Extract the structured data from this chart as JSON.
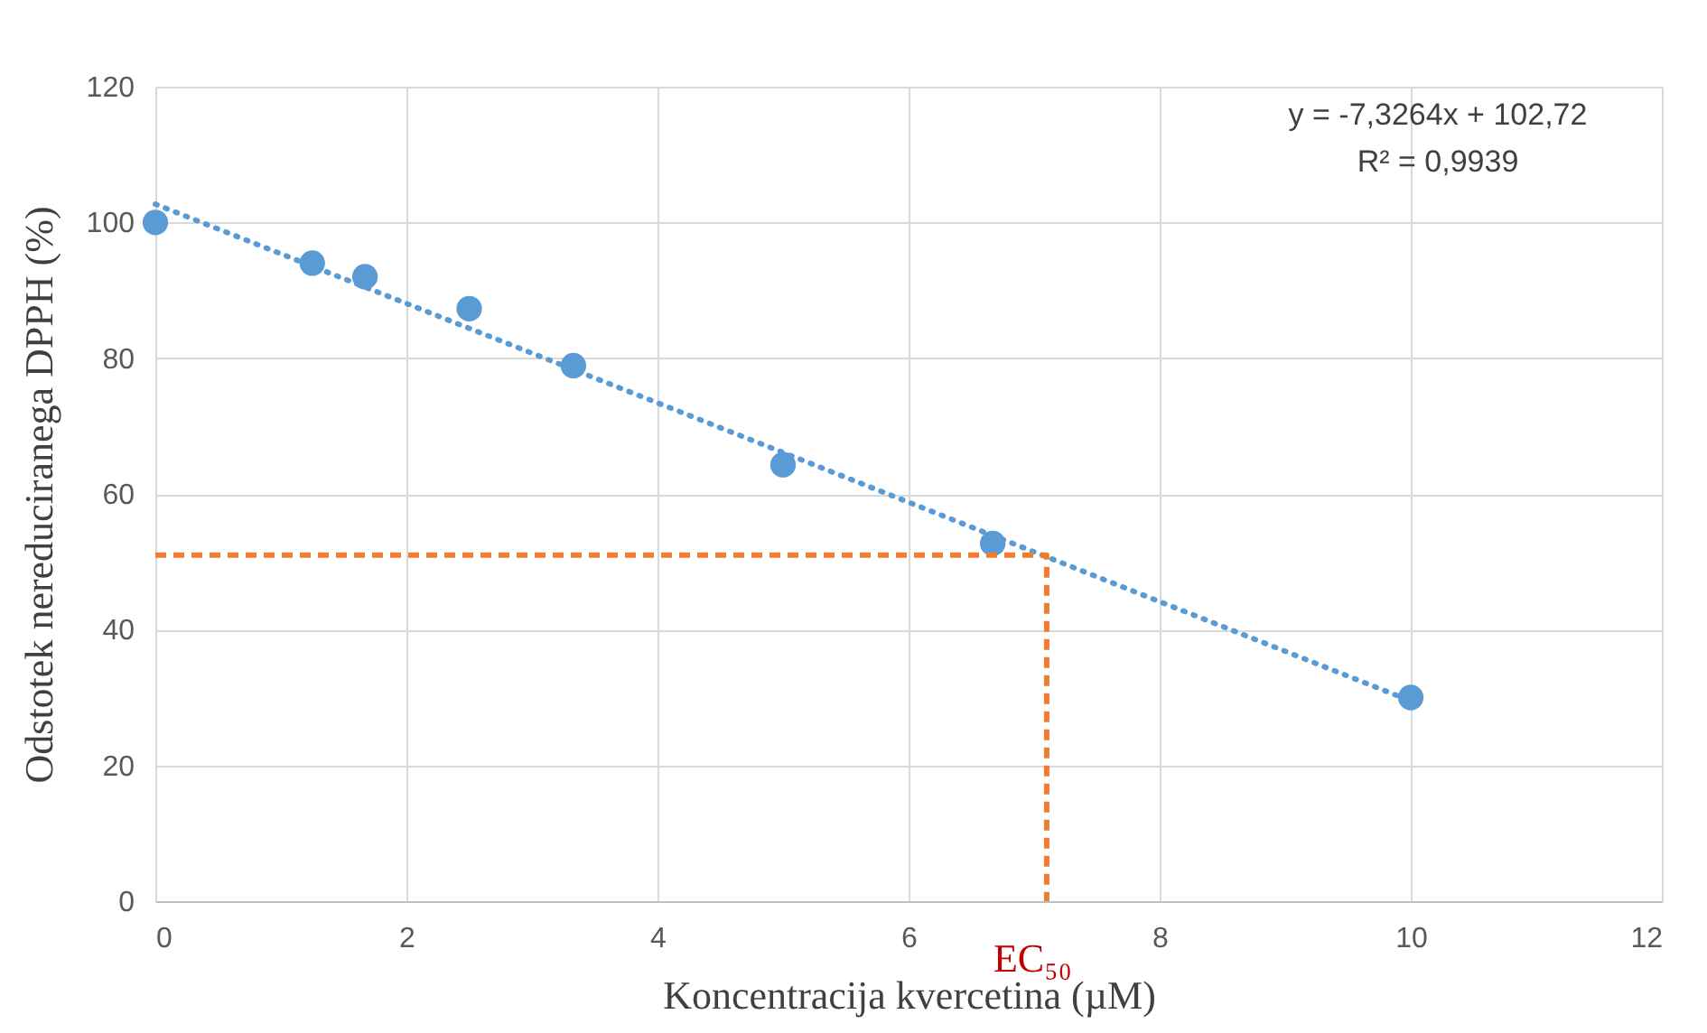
{
  "chart_data": {
    "type": "scatter",
    "xlabel": "Koncentracija kvercetina (µM)",
    "ylabel": "Odstotek nereduciranega DPPH (%)",
    "series": [
      {
        "color": "#5b9bd5",
        "marker": "circle",
        "x": [
          0,
          1.25,
          1.67,
          2.5,
          3.33,
          5,
          6.67,
          10
        ],
        "values": [
          100,
          94,
          92,
          87.3,
          78.9,
          64.3,
          52.7,
          30
        ]
      },
      {
        "type": "line",
        "color": "#5b9bd5",
        "line_style": "dotted",
        "marker": "none",
        "x": [
          0,
          10
        ],
        "values": [
          102.7,
          29.5
        ]
      },
      {
        "type": "line",
        "color": "#ed7d31",
        "line_style": "dashed",
        "marker": "none",
        "x": [
          0,
          7.1,
          7.1
        ],
        "values": [
          51,
          51,
          0
        ]
      }
    ],
    "annotations": [
      "y = -7,3264x + 102,72",
      "R² = 0,9939",
      {
        "text": "EC₅₀",
        "x": 7.1,
        "y": 0
      }
    ],
    "xlim": [
      0,
      12
    ],
    "xticks": [
      0,
      2,
      4,
      6,
      8,
      10,
      12
    ],
    "ylim": [
      0,
      120
    ],
    "yticks": [
      0,
      20,
      40,
      60,
      80,
      100,
      120
    ],
    "grid": true
  }
}
